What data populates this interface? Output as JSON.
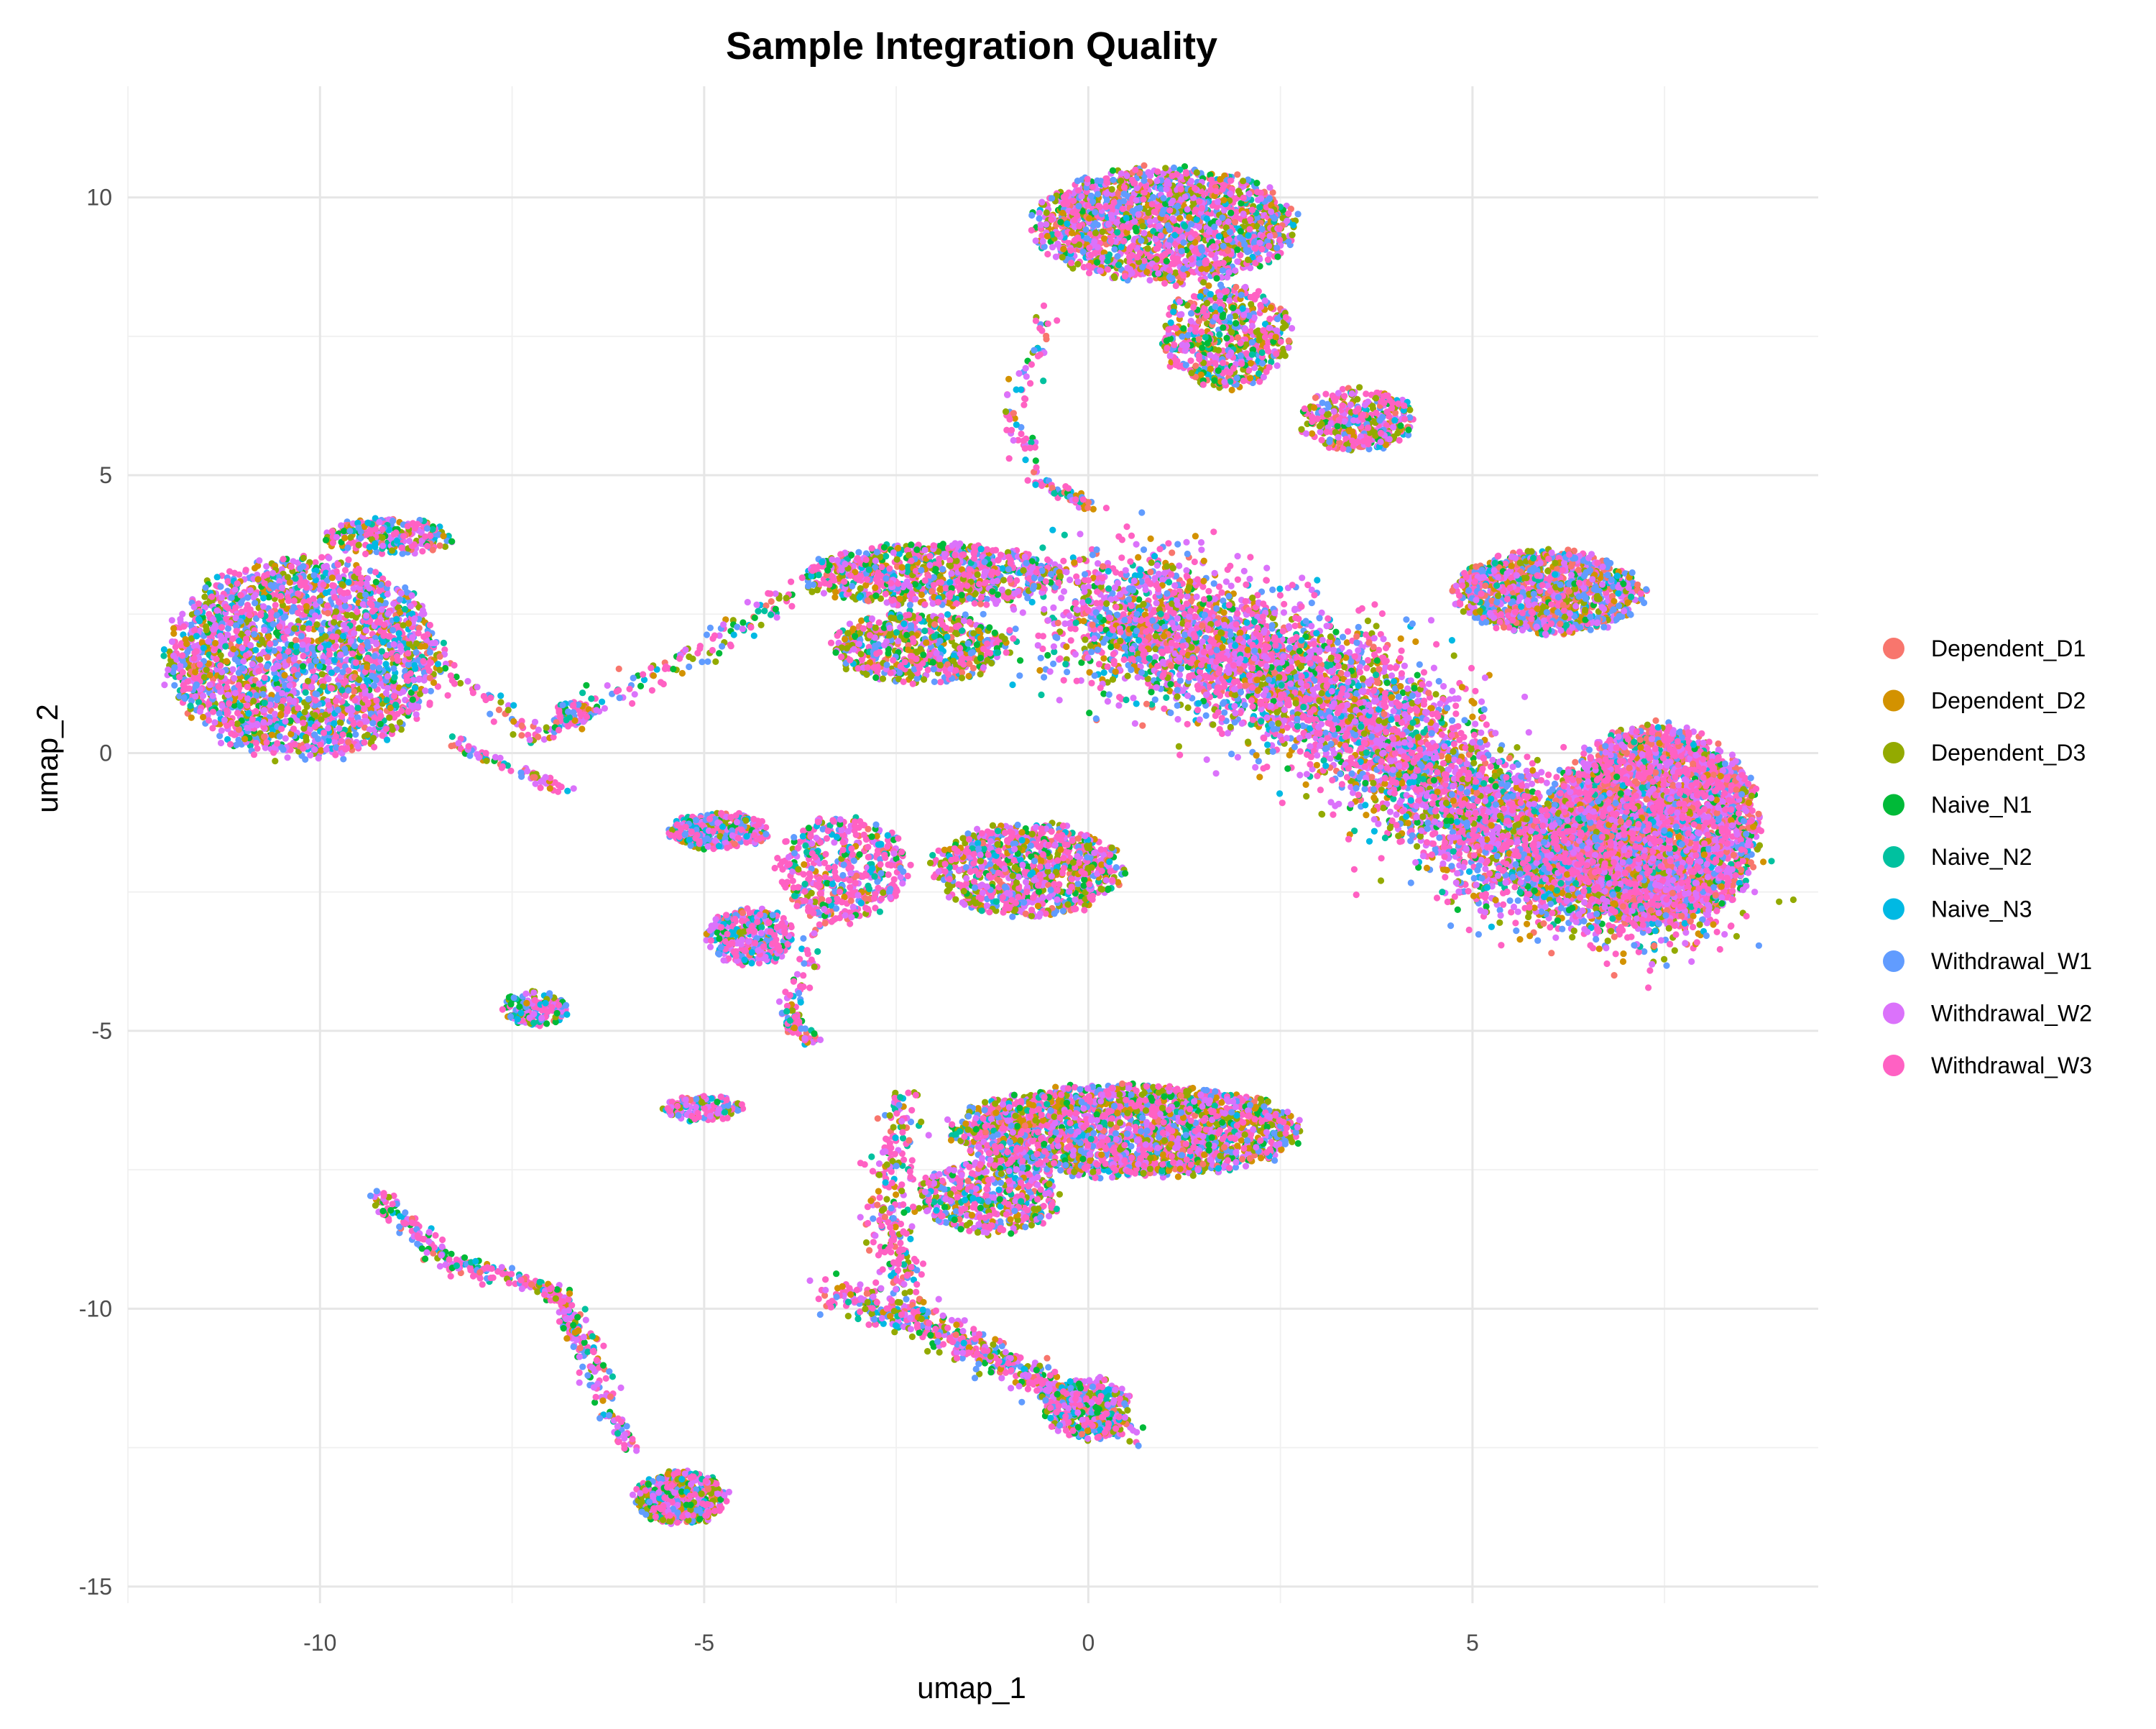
{
  "chart_data": {
    "type": "scatter",
    "title": "Sample Integration Quality",
    "xlabel": "umap_1",
    "ylabel": "umap_2",
    "xlim": [
      -12.5,
      9.5
    ],
    "ylim": [
      -15.3,
      12.0
    ],
    "x_ticks": [
      -10,
      -5,
      0,
      5
    ],
    "y_ticks": [
      10,
      5,
      0,
      -5,
      -10,
      -15
    ],
    "x_tick_labels": [
      "-10",
      "-5",
      "0",
      "5"
    ],
    "y_tick_labels": [
      "10",
      "5",
      "0",
      "-5",
      "-10",
      "-15"
    ],
    "grid": true,
    "legend_position": "right",
    "series": [
      {
        "name": "Dependent_D1",
        "color": "#F8766D"
      },
      {
        "name": "Dependent_D2",
        "color": "#D39200"
      },
      {
        "name": "Dependent_D3",
        "color": "#93AA00"
      },
      {
        "name": "Naive_N1",
        "color": "#00BA38"
      },
      {
        "name": "Naive_N2",
        "color": "#00C19F"
      },
      {
        "name": "Naive_N3",
        "color": "#00B9E3"
      },
      {
        "name": "Withdrawal_W1",
        "color": "#619CFF"
      },
      {
        "name": "Withdrawal_W2",
        "color": "#DB72FB"
      },
      {
        "name": "Withdrawal_W3",
        "color": "#FF61C3"
      }
    ],
    "clusters": [
      {
        "shape": "ellipse",
        "center": [
          -10.2,
          1.7
        ],
        "radii": [
          1.9,
          1.9
        ],
        "n": 2600,
        "mix": [
          1,
          2,
          3,
          1,
          1,
          2,
          4,
          5,
          6
        ]
      },
      {
        "shape": "ellipse",
        "center": [
          -9.1,
          3.9
        ],
        "radii": [
          0.9,
          0.35
        ],
        "n": 250,
        "mix": [
          1,
          2,
          3,
          2,
          1,
          1,
          2,
          3,
          5
        ]
      },
      {
        "shape": "path",
        "points": [
          [
            -8.3,
            1.5
          ],
          [
            -7.2,
            0.3
          ],
          [
            -6.5,
            0.8
          ],
          [
            -5.5,
            1.5
          ],
          [
            -4.5,
            2.3
          ],
          [
            -3.5,
            3.3
          ]
        ],
        "width": 0.25,
        "n": 200,
        "mix": [
          1,
          1,
          2,
          2,
          1,
          1,
          2,
          2,
          6
        ]
      },
      {
        "shape": "path",
        "points": [
          [
            -8.3,
            0.2
          ],
          [
            -6.8,
            -0.7
          ]
        ],
        "width": 0.12,
        "n": 80,
        "mix": [
          1,
          1,
          1,
          1,
          1,
          1,
          2,
          3,
          5
        ]
      },
      {
        "shape": "ellipse",
        "center": [
          -6.7,
          0.7
        ],
        "radii": [
          0.25,
          0.25
        ],
        "n": 60,
        "mix": [
          1,
          1,
          1,
          1,
          1,
          1,
          2,
          3,
          5
        ]
      },
      {
        "shape": "ellipse",
        "center": [
          1.0,
          9.5
        ],
        "radii": [
          1.8,
          1.1
        ],
        "n": 1800,
        "mix": [
          2,
          3,
          5,
          2,
          1,
          1,
          5,
          6,
          8
        ]
      },
      {
        "shape": "ellipse",
        "center": [
          1.8,
          7.5
        ],
        "radii": [
          0.9,
          1.0
        ],
        "n": 600,
        "mix": [
          2,
          2,
          4,
          2,
          1,
          1,
          3,
          3,
          6
        ]
      },
      {
        "shape": "ellipse",
        "center": [
          3.5,
          6.0
        ],
        "radii": [
          0.8,
          0.6
        ],
        "n": 400,
        "mix": [
          2,
          2,
          5,
          1,
          1,
          1,
          2,
          3,
          6
        ]
      },
      {
        "shape": "path",
        "points": [
          [
            -0.5,
            8.0
          ],
          [
            -1.0,
            6.0
          ],
          [
            -0.6,
            4.8
          ],
          [
            0.0,
            4.5
          ]
        ],
        "width": 0.15,
        "n": 120,
        "mix": [
          1,
          1,
          1,
          1,
          1,
          1,
          2,
          2,
          6
        ]
      },
      {
        "shape": "ellipse",
        "center": [
          -2.0,
          3.2
        ],
        "radii": [
          1.8,
          0.6
        ],
        "n": 900,
        "mix": [
          1,
          2,
          4,
          2,
          1,
          1,
          3,
          4,
          7
        ]
      },
      {
        "shape": "ellipse",
        "center": [
          -2.2,
          1.9
        ],
        "radii": [
          1.2,
          0.7
        ],
        "n": 600,
        "mix": [
          1,
          2,
          6,
          2,
          1,
          1,
          3,
          3,
          6
        ]
      },
      {
        "shape": "path",
        "points": [
          [
            0.0,
            2.7
          ],
          [
            3.0,
            1.2
          ],
          [
            5.5,
            -1.5
          ],
          [
            7.5,
            -2.5
          ]
        ],
        "width": 1.2,
        "n": 6500,
        "mix": [
          1,
          2,
          2,
          1,
          1,
          1,
          3,
          5,
          6
        ]
      },
      {
        "shape": "ellipse",
        "center": [
          7.4,
          -1.3
        ],
        "radii": [
          1.4,
          1.9
        ],
        "n": 3500,
        "mix": [
          4,
          1,
          1,
          1,
          1,
          1,
          2,
          5,
          8
        ]
      },
      {
        "shape": "ellipse",
        "center": [
          6.0,
          2.9
        ],
        "radii": [
          1.3,
          0.8
        ],
        "n": 1200,
        "mix": [
          4,
          2,
          3,
          1,
          1,
          1,
          6,
          5,
          4
        ]
      },
      {
        "shape": "ellipse",
        "center": [
          -4.8,
          -1.4
        ],
        "radii": [
          0.7,
          0.35
        ],
        "n": 350,
        "mix": [
          1,
          1,
          1,
          1,
          1,
          3,
          4,
          3,
          6
        ]
      },
      {
        "shape": "ellipse",
        "center": [
          -3.2,
          -2.1
        ],
        "radii": [
          0.9,
          1.0
        ],
        "n": 500,
        "mix": [
          1,
          1,
          1,
          1,
          1,
          1,
          2,
          3,
          8
        ]
      },
      {
        "shape": "ellipse",
        "center": [
          -4.4,
          -3.3
        ],
        "radii": [
          0.6,
          0.55
        ],
        "n": 350,
        "mix": [
          1,
          1,
          1,
          1,
          1,
          2,
          3,
          5,
          6
        ]
      },
      {
        "shape": "path",
        "points": [
          [
            -3.5,
            -3.0
          ],
          [
            -3.9,
            -4.8
          ],
          [
            -3.6,
            -5.2
          ]
        ],
        "width": 0.15,
        "n": 100,
        "mix": [
          1,
          1,
          1,
          1,
          1,
          1,
          1,
          2,
          7
        ]
      },
      {
        "shape": "ellipse",
        "center": [
          -0.8,
          -2.1
        ],
        "radii": [
          1.3,
          0.9
        ],
        "n": 1000,
        "mix": [
          1,
          2,
          4,
          2,
          1,
          1,
          3,
          4,
          7
        ]
      },
      {
        "shape": "ellipse",
        "center": [
          -7.2,
          -4.6
        ],
        "radii": [
          0.45,
          0.35
        ],
        "n": 150,
        "mix": [
          1,
          1,
          1,
          2,
          1,
          2,
          3,
          4,
          7
        ]
      },
      {
        "shape": "ellipse",
        "center": [
          -5.0,
          -6.4
        ],
        "radii": [
          0.55,
          0.25
        ],
        "n": 150,
        "mix": [
          1,
          1,
          2,
          2,
          1,
          2,
          3,
          4,
          6
        ]
      },
      {
        "shape": "ellipse",
        "center": [
          0.5,
          -6.8
        ],
        "radii": [
          2.4,
          0.9
        ],
        "n": 2400,
        "mix": [
          1,
          3,
          4,
          2,
          1,
          1,
          4,
          5,
          8
        ]
      },
      {
        "shape": "ellipse",
        "center": [
          -1.3,
          -8.0
        ],
        "radii": [
          1.0,
          0.7
        ],
        "n": 500,
        "mix": [
          1,
          2,
          4,
          2,
          1,
          1,
          3,
          4,
          7
        ]
      },
      {
        "shape": "path",
        "points": [
          [
            -2.4,
            -6.0
          ],
          [
            -2.6,
            -8.3
          ],
          [
            -2.4,
            -9.7
          ]
        ],
        "width": 0.3,
        "n": 250,
        "mix": [
          1,
          1,
          2,
          1,
          1,
          1,
          2,
          3,
          7
        ]
      },
      {
        "shape": "path",
        "points": [
          [
            -9.3,
            -7.9
          ],
          [
            -8.3,
            -9.2
          ],
          [
            -7.0,
            -9.6
          ],
          [
            -6.5,
            -10.8
          ],
          [
            -6.0,
            -12.5
          ]
        ],
        "width": 0.18,
        "n": 400,
        "mix": [
          1,
          1,
          1,
          2,
          1,
          1,
          2,
          3,
          7
        ]
      },
      {
        "shape": "ellipse",
        "center": [
          -5.3,
          -13.4
        ],
        "radii": [
          0.65,
          0.5
        ],
        "n": 500,
        "mix": [
          1,
          2,
          3,
          2,
          1,
          1,
          3,
          5,
          7
        ]
      },
      {
        "shape": "path",
        "points": [
          [
            -3.4,
            -9.7
          ],
          [
            -2.0,
            -10.3
          ],
          [
            -0.8,
            -11.2
          ],
          [
            0.5,
            -12.2
          ]
        ],
        "width": 0.3,
        "n": 600,
        "mix": [
          1,
          1,
          3,
          2,
          1,
          2,
          3,
          4,
          7
        ]
      },
      {
        "shape": "ellipse",
        "center": [
          0.0,
          -11.8
        ],
        "radii": [
          0.6,
          0.6
        ],
        "n": 350,
        "mix": [
          1,
          1,
          3,
          2,
          1,
          2,
          3,
          4,
          7
        ]
      }
    ]
  }
}
